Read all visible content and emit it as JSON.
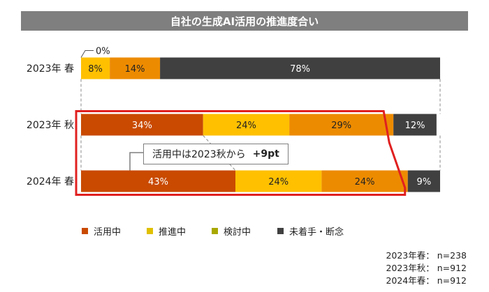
{
  "title": "自社の生成AI活用の推進度合い",
  "chart_data": {
    "type": "bar",
    "orientation": "horizontal",
    "stacked": true,
    "percent_total": 100,
    "categories": [
      "2023年 春",
      "2023年 秋",
      "2024年 春"
    ],
    "series": [
      {
        "name": "活用中",
        "color": "#c94a00",
        "values": [
          0,
          34,
          43
        ],
        "labels": [
          "0%",
          "34%",
          "43%"
        ]
      },
      {
        "name": "推進中",
        "color": "#ffc000",
        "values": [
          8,
          24,
          24
        ],
        "labels": [
          "8%",
          "24%",
          "24%"
        ]
      },
      {
        "name": "検討中",
        "color": "#ed8b00",
        "values": [
          14,
          29,
          24
        ],
        "labels": [
          "14%",
          "29%",
          "24%"
        ]
      },
      {
        "name": "未着手・断念",
        "color": "#404040",
        "values": [
          78,
          12,
          9
        ],
        "labels": [
          "78%",
          "12%",
          "9%"
        ]
      }
    ],
    "legend": [
      {
        "name": "活用中",
        "color": "#c94a00"
      },
      {
        "name": "推進中",
        "color": "#e0c000"
      },
      {
        "name": "検討中",
        "color": "#a8a800"
      },
      {
        "name": "未着手・断念",
        "color": "#404040"
      }
    ],
    "highlight_color": "#e02020",
    "annotation": {
      "text": "活用中は2023秋から",
      "highlight": "+9pt"
    },
    "sample_sizes": [
      "2023年春： n=238",
      "2023年秋： n=912",
      "2024年春： n=912"
    ]
  }
}
